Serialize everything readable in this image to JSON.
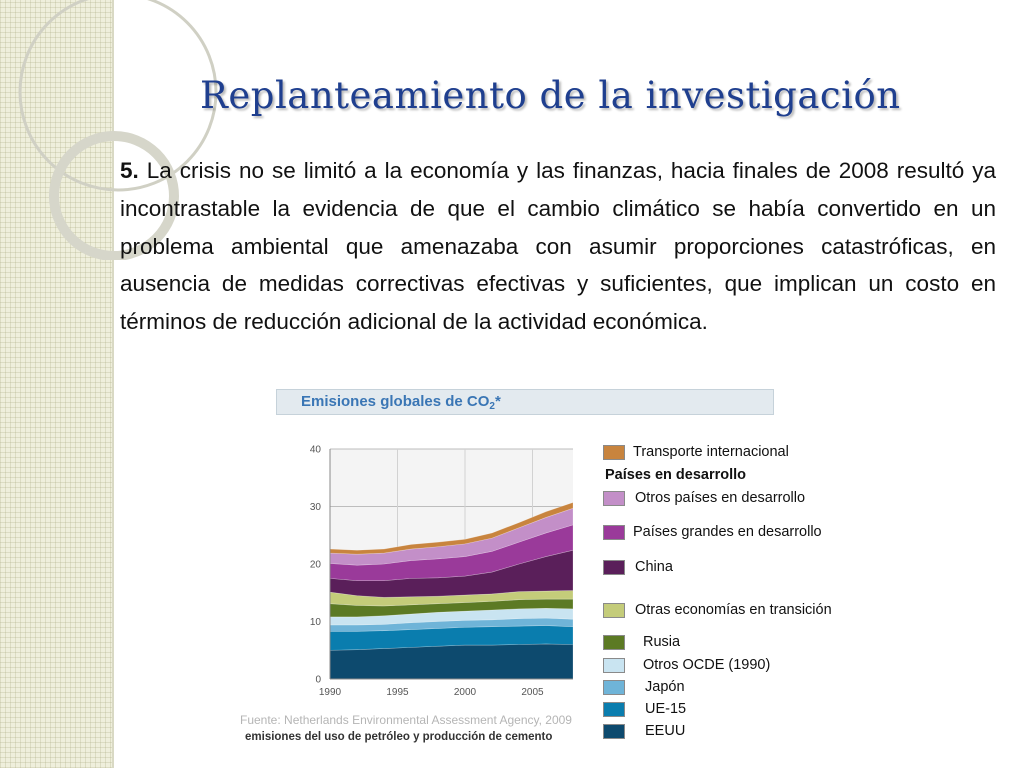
{
  "slide": {
    "title": "Replanteamiento de la investigación",
    "paragraph_number": "5.",
    "paragraph": "La crisis no se limitó a la economía y las finanzas, hacia finales de 2008 resultó ya incontrastable la evidencia de que el cambio climático se había convertido en un problema ambiental que amenazaba con asumir proporciones catastróficas, en ausencia de medidas correctivas efectivas y suficientes, que implican un costo en términos de reducción adicional de la actividad económica."
  },
  "chart_data": {
    "type": "area",
    "stacked": true,
    "title": "Emisiones globales de CO",
    "title_sub": "2",
    "title_sup": "*",
    "x": [
      1990,
      1992,
      1994,
      1996,
      1998,
      2000,
      2002,
      2004,
      2006,
      2008
    ],
    "xticks": [
      "1990",
      "1995",
      "2000",
      "2005"
    ],
    "yticks": [
      "0",
      "10",
      "20",
      "30",
      "40"
    ],
    "ylim": [
      0,
      40
    ],
    "xlim": [
      1990,
      2008
    ],
    "series": [
      {
        "name": "EEUU",
        "color": "#0d4a6e",
        "values": [
          5.0,
          5.1,
          5.3,
          5.5,
          5.7,
          5.9,
          5.9,
          6.0,
          6.1,
          6.0
        ]
      },
      {
        "name": "UE-15",
        "color": "#0a7dae",
        "values": [
          3.3,
          3.2,
          3.1,
          3.1,
          3.1,
          3.1,
          3.2,
          3.2,
          3.2,
          3.1
        ]
      },
      {
        "name": "Japón",
        "color": "#6fb4d8",
        "values": [
          1.1,
          1.1,
          1.1,
          1.2,
          1.2,
          1.2,
          1.2,
          1.3,
          1.3,
          1.3
        ]
      },
      {
        "name": "Otros OCDE (1990)",
        "color": "#c9e4f1",
        "values": [
          1.4,
          1.4,
          1.5,
          1.5,
          1.6,
          1.6,
          1.7,
          1.7,
          1.7,
          1.8
        ]
      },
      {
        "name": "Rusia",
        "color": "#5c7a24",
        "values": [
          2.3,
          2.0,
          1.7,
          1.6,
          1.5,
          1.5,
          1.5,
          1.6,
          1.6,
          1.7
        ]
      },
      {
        "name": "Otras economías en transición",
        "color": "#c4cc7a",
        "values": [
          2.0,
          1.7,
          1.5,
          1.4,
          1.3,
          1.3,
          1.3,
          1.4,
          1.4,
          1.5
        ]
      },
      {
        "name": "China",
        "color": "#5a1f5a",
        "values": [
          2.4,
          2.6,
          2.9,
          3.2,
          3.2,
          3.3,
          3.8,
          4.8,
          6.0,
          7.0
        ]
      },
      {
        "name": "Países grandes en desarrollo",
        "color": "#9a3a9a",
        "values": [
          2.6,
          2.7,
          2.9,
          3.1,
          3.3,
          3.4,
          3.6,
          3.8,
          4.1,
          4.4
        ]
      },
      {
        "name": "Otros países en desarrollo",
        "color": "#c38fc8",
        "values": [
          1.8,
          1.9,
          1.9,
          2.0,
          2.1,
          2.2,
          2.3,
          2.5,
          2.7,
          2.9
        ]
      },
      {
        "name": "Transporte internacional",
        "color": "#c8843e",
        "values": [
          0.7,
          0.7,
          0.7,
          0.8,
          0.8,
          0.8,
          0.9,
          0.9,
          1.0,
          1.0
        ]
      }
    ],
    "legend": {
      "placement": "right",
      "group_label": "Países en desarrollo",
      "items": [
        {
          "label": "Transporte internacional",
          "color": "#c8843e"
        },
        {
          "label": "Otros países en desarrollo",
          "color": "#c38fc8"
        },
        {
          "label": "Países grandes en desarrollo",
          "color": "#9a3a9a"
        },
        {
          "label": "China",
          "color": "#5a1f5a"
        },
        {
          "label": "Otras economías en transición",
          "color": "#c4cc7a"
        },
        {
          "label": "Rusia",
          "color": "#5c7a24"
        },
        {
          "label": "Otros OCDE (1990)",
          "color": "#c9e4f1"
        },
        {
          "label": "Japón",
          "color": "#6fb4d8"
        },
        {
          "label": "UE-15",
          "color": "#0a7dae"
        },
        {
          "label": "EEUU",
          "color": "#0d4a6e"
        }
      ]
    },
    "grid": true,
    "source": "Fuente: Netherlands Environmental Assessment Agency, 2009",
    "note": "emisiones del uso de petróleo y producción de cemento"
  }
}
